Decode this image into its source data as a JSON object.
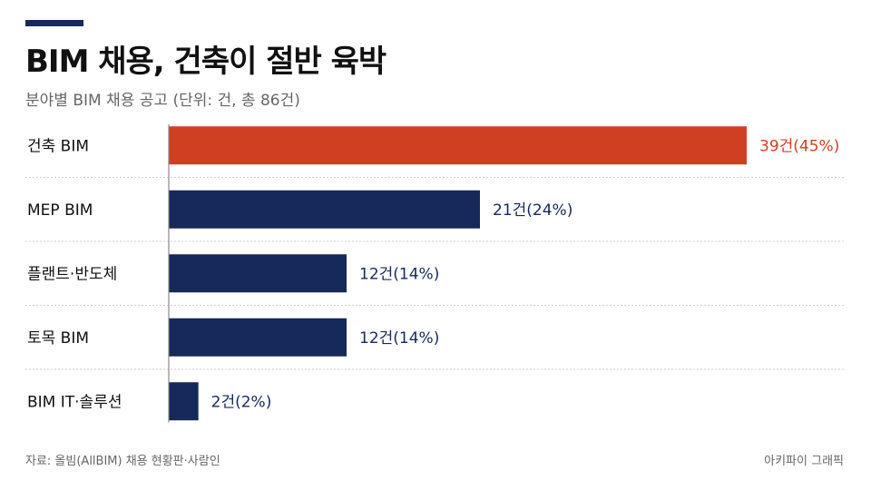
{
  "header": {
    "title": "BIM 채용, 건축이 절반 육박",
    "subtitle": "분야별 BIM 채용 공고 (단위: 건, 총 86건)"
  },
  "footer": {
    "source": "자료: 올빔(AllBIM) 채용 현황판·사람인",
    "credit": "아키파이 그래픽"
  },
  "colors": {
    "accent": "#D13F22",
    "bar": "#15295A",
    "rule": "#15295A"
  },
  "chart_data": {
    "type": "bar",
    "orientation": "horizontal",
    "categories": [
      "건축 BIM",
      "MEP BIM",
      "플랜트·반도체",
      "토목 BIM",
      "BIM IT·솔루션"
    ],
    "values": [
      39,
      21,
      12,
      12,
      2
    ],
    "data_labels": [
      "39건(45%)",
      "21건(24%)",
      "12건(14%)",
      "12건(14%)",
      "2건(2%)"
    ],
    "highlight_index": 0,
    "xlim": [
      0,
      39
    ],
    "grid": false,
    "legend": "none"
  }
}
